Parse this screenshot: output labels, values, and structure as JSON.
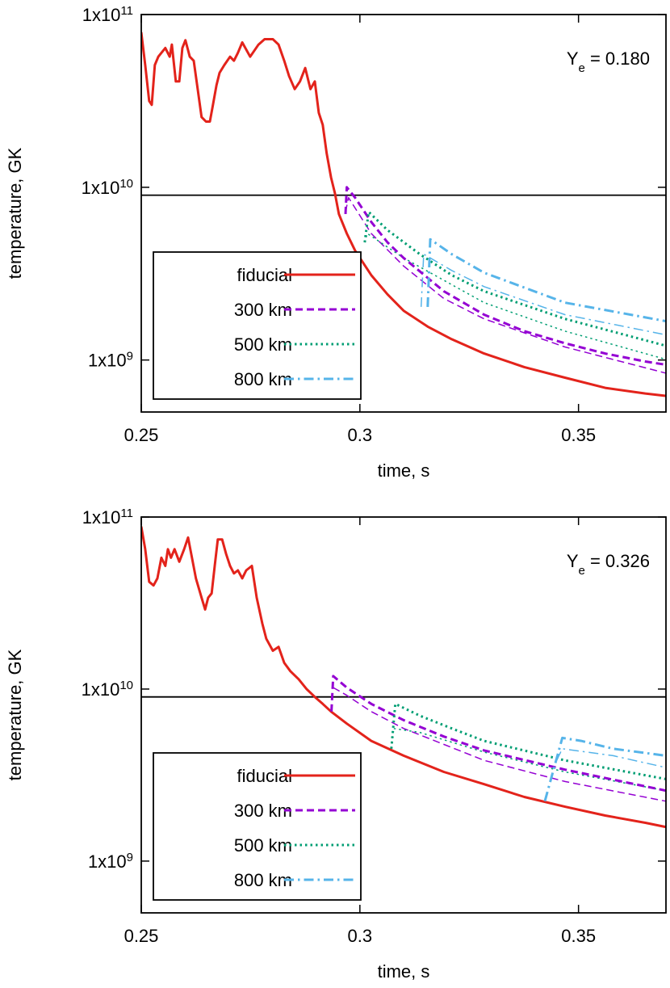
{
  "chart_data": [
    {
      "type": "line",
      "annotation": "Y_{e} = 0.180",
      "xlabel": "time, s",
      "ylabel": "temperature, GK",
      "xlim": [
        0.25,
        0.37
      ],
      "xticks": [
        0.25,
        0.3,
        0.35
      ],
      "ylim": [
        500000000.0,
        100000000000.0
      ],
      "ylog": true,
      "yticks": [
        {
          "value": 1000000000.0,
          "label": "1x10^{9}"
        },
        {
          "value": 10000000000.0,
          "label": "1x10^{10}"
        },
        {
          "value": 100000000000.0,
          "label": "1x10^{11}"
        }
      ],
      "reference_line": 9000000000.0,
      "legend": "bottom-left",
      "series": [
        {
          "name": "fiducial",
          "color": "#e3231b",
          "dash": "solid",
          "width": 3,
          "x": [
            0.25,
            0.2509,
            0.2518,
            0.2524,
            0.2531,
            0.2539,
            0.2546,
            0.2555,
            0.2565,
            0.257,
            0.2579,
            0.2587,
            0.2594,
            0.2601,
            0.2611,
            0.262,
            0.2629,
            0.2638,
            0.2648,
            0.2657,
            0.2664,
            0.2672,
            0.2679,
            0.269,
            0.2703,
            0.2712,
            0.2721,
            0.2731,
            0.2749,
            0.2768,
            0.2782,
            0.2801,
            0.2814,
            0.2827,
            0.2838,
            0.2851,
            0.2863,
            0.2875,
            0.2887,
            0.2897,
            0.2906,
            0.2915,
            0.2924,
            0.2934,
            0.2943,
            0.2952,
            0.297,
            0.2989,
            0.3026,
            0.3063,
            0.31,
            0.3155,
            0.321,
            0.3284,
            0.3376,
            0.3469,
            0.3561,
            0.3653,
            0.3699
          ],
          "values": [
            79000000000.0,
            51000000000.0,
            31600000000.0,
            30000000000.0,
            51000000000.0,
            57000000000.0,
            60000000000.0,
            64000000000.0,
            57000000000.0,
            67000000000.0,
            41000000000.0,
            41000000000.0,
            64000000000.0,
            71000000000.0,
            57000000000.0,
            54000000000.0,
            37000000000.0,
            25500000000.0,
            24000000000.0,
            24000000000.0,
            30000000000.0,
            39000000000.0,
            46000000000.0,
            51000000000.0,
            57000000000.0,
            54000000000.0,
            60000000000.0,
            69000000000.0,
            57000000000.0,
            67000000000.0,
            72000000000.0,
            72000000000.0,
            67000000000.0,
            54000000000.0,
            44000000000.0,
            37000000000.0,
            41000000000.0,
            49000000000.0,
            37000000000.0,
            41000000000.0,
            27000000000.0,
            23000000000.0,
            15700000000.0,
            11400000000.0,
            9200000000.0,
            7000000000.0,
            5400000000.0,
            4300000000.0,
            3100000000.0,
            2400000000.0,
            1930000000.0,
            1560000000.0,
            1320000000.0,
            1090000000.0,
            910000000.0,
            790000000.0,
            690000000.0,
            640000000.0,
            620000000.0
          ]
        },
        {
          "name": "300 km",
          "color": "#9400d3",
          "dash": "dashed",
          "width": 3,
          "x": [
            0.2967,
            0.297,
            0.2989,
            0.3026,
            0.3063,
            0.31,
            0.3192,
            0.3284,
            0.3376,
            0.3469,
            0.3561,
            0.3653,
            0.3699
          ],
          "values": [
            7000000000.0,
            10000000000.0,
            8700000000.0,
            6300000000.0,
            4800000000.0,
            3900000000.0,
            2500000000.0,
            1830000000.0,
            1470000000.0,
            1250000000.0,
            1090000000.0,
            980000000.0,
            940000000.0
          ]
        },
        {
          "color": "#9400d3",
          "dash": "dashed",
          "width": 1.5,
          "x": [
            0.2967,
            0.2974,
            0.3026,
            0.31,
            0.3192,
            0.3284,
            0.3469,
            0.3699
          ],
          "values": [
            7200000000.0,
            8700000000.0,
            5400000000.0,
            3500000000.0,
            2270000000.0,
            1730000000.0,
            1190000000.0,
            840000000.0
          ]
        },
        {
          "name": "500 km",
          "color": "#009e73",
          "dash": "dotted",
          "width": 3,
          "x": [
            0.3011,
            0.302,
            0.3063,
            0.3137,
            0.321,
            0.3284,
            0.3469,
            0.3699
          ],
          "values": [
            4800000000.0,
            7200000000.0,
            5650000000.0,
            4100000000.0,
            3100000000.0,
            2500000000.0,
            1730000000.0,
            1210000000.0
          ]
        },
        {
          "color": "#009e73",
          "dash": "dotted",
          "width": 1.5,
          "x": [
            0.3011,
            0.3017,
            0.31,
            0.3284,
            0.3469,
            0.3699
          ],
          "values": [
            4800000000.0,
            5400000000.0,
            3900000000.0,
            2150000000.0,
            1470000000.0,
            1010000000.0
          ]
        },
        {
          "name": "800 km",
          "color": "#56b4e9",
          "dash": "dashdot",
          "width": 3,
          "x": [
            0.3155,
            0.3161,
            0.321,
            0.3284,
            0.3469,
            0.3699
          ],
          "values": [
            2030000000.0,
            5000000000.0,
            4100000000.0,
            3200000000.0,
            2150000000.0,
            1680000000.0
          ]
        },
        {
          "color": "#56b4e9",
          "dash": "dashdot",
          "width": 1.5,
          "x": [
            0.314,
            0.3146,
            0.321,
            0.3284,
            0.3469,
            0.3699
          ],
          "values": [
            2030000000.0,
            4100000000.0,
            3300000000.0,
            2660000000.0,
            1830000000.0,
            1400000000.0
          ]
        }
      ]
    },
    {
      "type": "line",
      "annotation": "Y_{e} = 0.326",
      "xlabel": "time, s",
      "ylabel": "temperature, GK",
      "xlim": [
        0.25,
        0.37
      ],
      "xticks": [
        0.25,
        0.3,
        0.35
      ],
      "ylim": [
        500000000.0,
        100000000000.0
      ],
      "ylog": true,
      "yticks": [
        {
          "value": 1000000000.0,
          "label": "1x10^{9}"
        },
        {
          "value": 10000000000.0,
          "label": "1x10^{10}"
        },
        {
          "value": 100000000000.0,
          "label": "1x10^{11}"
        }
      ],
      "reference_line": 9000000000.0,
      "legend": "bottom-left",
      "series": [
        {
          "name": "fiducial",
          "color": "#e3231b",
          "dash": "solid",
          "width": 3,
          "x": [
            0.25,
            0.2509,
            0.2518,
            0.2528,
            0.2537,
            0.2546,
            0.2555,
            0.2561,
            0.2568,
            0.2576,
            0.2587,
            0.2598,
            0.2607,
            0.2616,
            0.2625,
            0.2638,
            0.2646,
            0.2653,
            0.2661,
            0.2668,
            0.2675,
            0.2685,
            0.2694,
            0.2703,
            0.2712,
            0.2721,
            0.2731,
            0.274,
            0.2753,
            0.2764,
            0.2777,
            0.2786,
            0.2801,
            0.2814,
            0.2827,
            0.2841,
            0.286,
            0.2878,
            0.2897,
            0.2915,
            0.2934,
            0.297,
            0.3026,
            0.31,
            0.3192,
            0.3284,
            0.3376,
            0.3469,
            0.3561,
            0.3653,
            0.3699
          ],
          "values": [
            88000000000.0,
            65000000000.0,
            42000000000.0,
            40000000000.0,
            44000000000.0,
            58000000000.0,
            52000000000.0,
            65000000000.0,
            58000000000.0,
            65000000000.0,
            55000000000.0,
            65000000000.0,
            76000000000.0,
            58000000000.0,
            44000000000.0,
            34000000000.0,
            29000000000.0,
            34000000000.0,
            36000000000.0,
            52000000000.0,
            74000000000.0,
            74000000000.0,
            61000000000.0,
            52000000000.0,
            47000000000.0,
            49000000000.0,
            44000000000.0,
            49000000000.0,
            52000000000.0,
            34000000000.0,
            24000000000.0,
            19600000000.0,
            16700000000.0,
            17600000000.0,
            14200000000.0,
            12700000000.0,
            11400000000.0,
            10000000000.0,
            9000000000.0,
            8200000000.0,
            7400000000.0,
            6300000000.0,
            5000000000.0,
            4100000000.0,
            3300000000.0,
            2800000000.0,
            2360000000.0,
            2070000000.0,
            1840000000.0,
            1670000000.0,
            1580000000.0
          ]
        },
        {
          "name": "300 km",
          "color": "#9400d3",
          "dash": "dashed",
          "width": 3,
          "x": [
            0.2935,
            0.2939,
            0.297,
            0.3026,
            0.31,
            0.3192,
            0.3284,
            0.3469,
            0.3699
          ],
          "values": [
            7400000000.0,
            11900000000.0,
            10200000000.0,
            8200000000.0,
            6600000000.0,
            5300000000.0,
            4400000000.0,
            3400000000.0,
            2570000000.0
          ]
        },
        {
          "color": "#9400d3",
          "dash": "dashed",
          "width": 1.5,
          "x": [
            0.2939,
            0.297,
            0.3026,
            0.31,
            0.3284,
            0.3469,
            0.3699
          ],
          "values": [
            10200000000.0,
            9200000000.0,
            7400000000.0,
            5900000000.0,
            3850000000.0,
            2900000000.0,
            2230000000.0
          ]
        },
        {
          "name": "500 km",
          "color": "#009e73",
          "dash": "dotted",
          "width": 3,
          "x": [
            0.3072,
            0.3081,
            0.3137,
            0.321,
            0.3284,
            0.3469,
            0.3699
          ],
          "values": [
            4500000000.0,
            8200000000.0,
            7000000000.0,
            5900000000.0,
            5000000000.0,
            3850000000.0,
            3000000000.0
          ]
        },
        {
          "color": "#009e73",
          "dash": "dotted",
          "width": 1.5,
          "x": [
            0.3072,
            0.3076,
            0.3137,
            0.3284,
            0.3469,
            0.3699
          ],
          "values": [
            4500000000.0,
            5900000000.0,
            5600000000.0,
            4300000000.0,
            3300000000.0,
            2570000000.0
          ]
        },
        {
          "name": "800 km",
          "color": "#56b4e9",
          "dash": "dashdot",
          "width": 3,
          "x": [
            0.3423,
            0.3463,
            0.3506,
            0.3579,
            0.3699
          ],
          "values": [
            2230000000.0,
            5200000000.0,
            5000000000.0,
            4500000000.0,
            4100000000.0
          ]
        },
        {
          "color": "#56b4e9",
          "dash": "dashdot",
          "width": 1.5,
          "x": [
            0.345,
            0.3463,
            0.3579,
            0.3699
          ],
          "values": [
            3850000000.0,
            4500000000.0,
            4100000000.0,
            3500000000.0
          ]
        }
      ]
    }
  ]
}
